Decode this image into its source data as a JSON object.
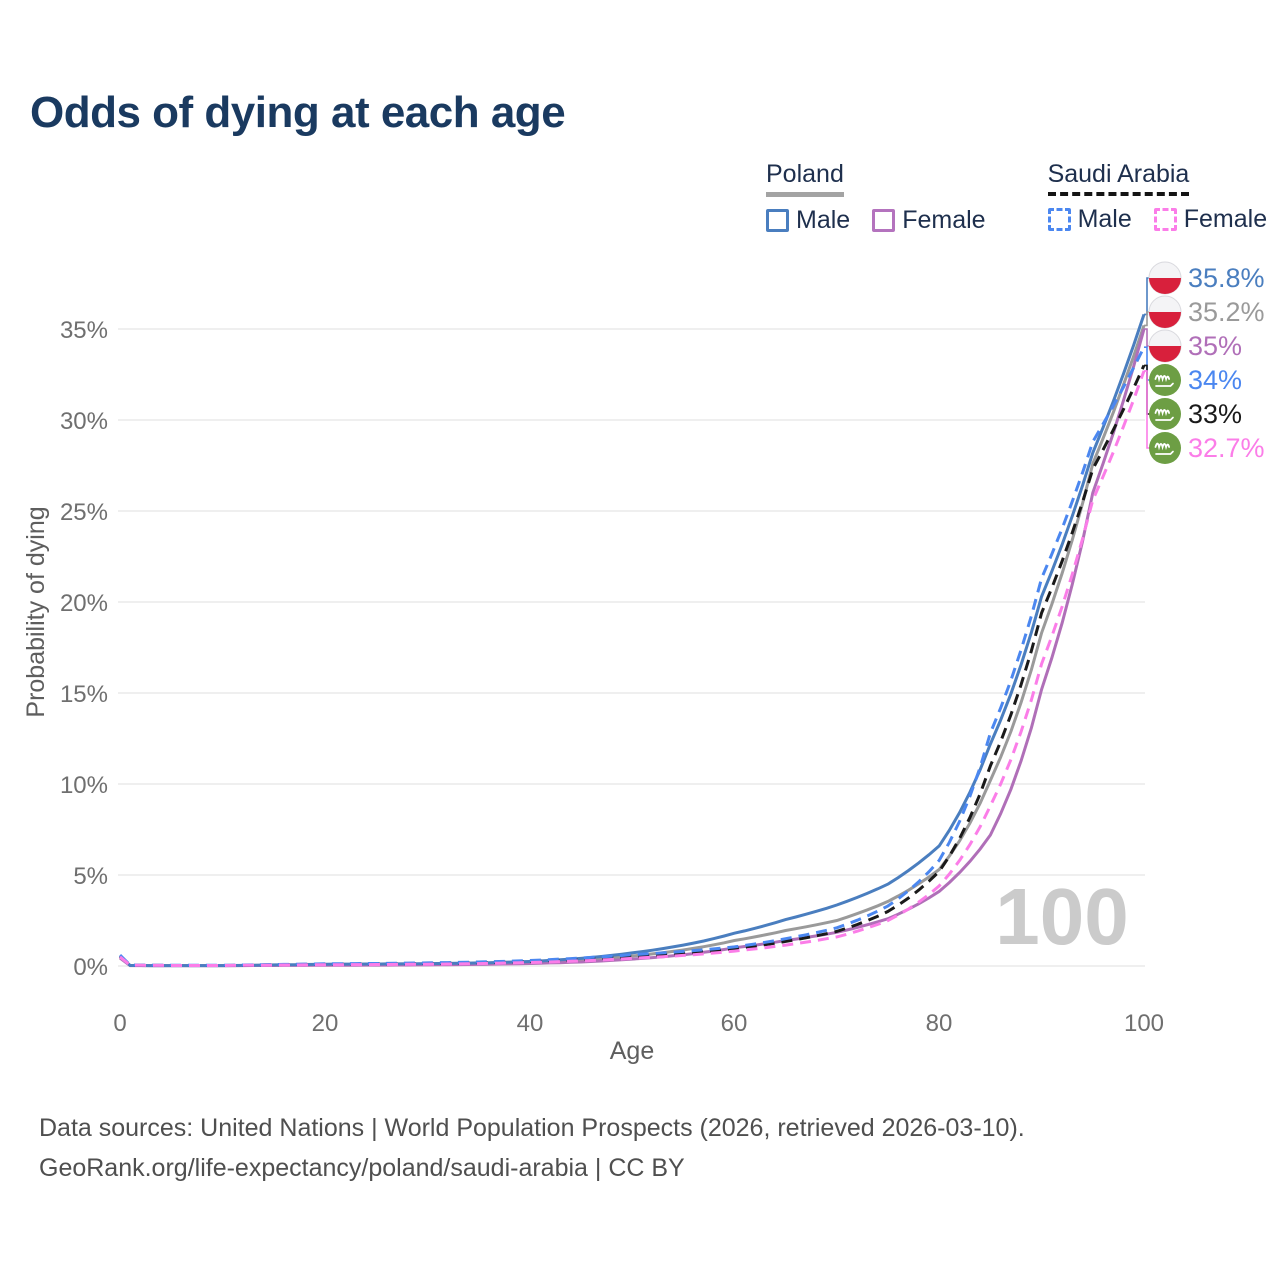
{
  "title": "Odds of dying at each age",
  "legend": {
    "groups": [
      {
        "name": "Poland",
        "line_style": "solid",
        "underline_color": "#a3a3a3",
        "items": [
          {
            "label": "Male",
            "color": "#4a7ebf"
          },
          {
            "label": "Female",
            "color": "#b473be"
          }
        ]
      },
      {
        "name": "Saudi Arabia",
        "line_style": "dashed",
        "underline_color": "#141414",
        "items": [
          {
            "label": "Male",
            "color": "#4b87f0"
          },
          {
            "label": "Female",
            "color": "#fb7de8"
          }
        ]
      }
    ]
  },
  "chart_data": {
    "type": "line",
    "title": "Odds of dying at each age",
    "xlabel": "Age",
    "ylabel": "Probability of dying",
    "x_ticks": [
      0,
      20,
      40,
      60,
      80,
      100
    ],
    "y_ticks": [
      "0%",
      "5%",
      "10%",
      "15%",
      "20%",
      "25%",
      "30%",
      "35%"
    ],
    "xlim": [
      0,
      100
    ],
    "ylim": [
      0,
      37.5
    ],
    "grid": "horizontal",
    "legend_position": "top-right",
    "age_indicator": "100",
    "ages": [
      0,
      1,
      5,
      10,
      15,
      20,
      25,
      30,
      35,
      40,
      45,
      50,
      55,
      60,
      65,
      70,
      75,
      80,
      85,
      90,
      95,
      100
    ],
    "series": [
      {
        "id": "poland-male",
        "name": "Poland Male",
        "country": "Poland",
        "flag": "poland",
        "color": "#4a7ebf",
        "dash": false,
        "end_label": "35.8%",
        "end_value": 35.8,
        "values": [
          0.52,
          0.03,
          0.02,
          0.02,
          0.06,
          0.1,
          0.11,
          0.13,
          0.17,
          0.25,
          0.42,
          0.72,
          1.15,
          1.8,
          2.55,
          3.35,
          4.5,
          6.6,
          12.2,
          20.3,
          28.2,
          35.8
        ]
      },
      {
        "id": "poland-both",
        "name": "Poland Both sexes",
        "country": "Poland",
        "flag": "poland",
        "color": "#9a9a9a",
        "dash": false,
        "end_label": "35.2%",
        "end_value": 35.2,
        "values": [
          0.48,
          0.03,
          0.02,
          0.02,
          0.05,
          0.07,
          0.08,
          0.1,
          0.13,
          0.2,
          0.32,
          0.55,
          0.88,
          1.4,
          1.95,
          2.5,
          3.55,
          5.3,
          10.2,
          18.3,
          27.6,
          35.2
        ]
      },
      {
        "id": "poland-female",
        "name": "Poland Female",
        "country": "Poland",
        "flag": "poland",
        "color": "#b06fb8",
        "dash": false,
        "end_label": "35%",
        "end_value": 35.0,
        "values": [
          0.44,
          0.02,
          0.02,
          0.02,
          0.03,
          0.04,
          0.05,
          0.06,
          0.09,
          0.14,
          0.22,
          0.38,
          0.62,
          1.0,
          1.4,
          1.85,
          2.6,
          4.1,
          7.2,
          15.2,
          26.0,
          35.0
        ]
      },
      {
        "id": "saudi-arabia-male",
        "name": "Saudi Arabia Male",
        "country": "Saudi Arabia",
        "flag": "saudi-arabia",
        "color": "#4b87f0",
        "dash": true,
        "end_label": "34%",
        "end_value": 34.0,
        "values": [
          0.6,
          0.05,
          0.04,
          0.04,
          0.08,
          0.12,
          0.14,
          0.17,
          0.22,
          0.3,
          0.44,
          0.62,
          0.8,
          1.05,
          1.5,
          2.1,
          3.3,
          5.8,
          12.8,
          21.3,
          28.8,
          34.0
        ]
      },
      {
        "id": "saudi-arabia-both",
        "name": "Saudi Arabia Both sexes",
        "country": "Saudi Arabia",
        "flag": "saudi-arabia",
        "color": "#1a1a1a",
        "dash": true,
        "end_label": "33%",
        "end_value": 33.0,
        "values": [
          0.55,
          0.04,
          0.03,
          0.03,
          0.07,
          0.1,
          0.12,
          0.14,
          0.18,
          0.25,
          0.36,
          0.52,
          0.7,
          0.95,
          1.35,
          1.9,
          3.0,
          5.2,
          11.0,
          19.4,
          27.3,
          33.0
        ]
      },
      {
        "id": "saudi-arabia-female",
        "name": "Saudi Arabia Female",
        "country": "Saudi Arabia",
        "flag": "saudi-arabia",
        "color": "#fb7de8",
        "dash": true,
        "end_label": "32.7%",
        "end_value": 32.7,
        "values": [
          0.5,
          0.04,
          0.03,
          0.03,
          0.05,
          0.07,
          0.08,
          0.1,
          0.13,
          0.19,
          0.28,
          0.42,
          0.58,
          0.82,
          1.15,
          1.6,
          2.5,
          4.4,
          8.8,
          16.6,
          25.6,
          32.7
        ]
      }
    ]
  },
  "footer": {
    "line1": "Data sources: United Nations | World Population Prospects (2026, retrieved 2026-03-10).",
    "line2": "GeoRank.org/life-expectancy/poland/saudi-arabia | CC BY"
  }
}
